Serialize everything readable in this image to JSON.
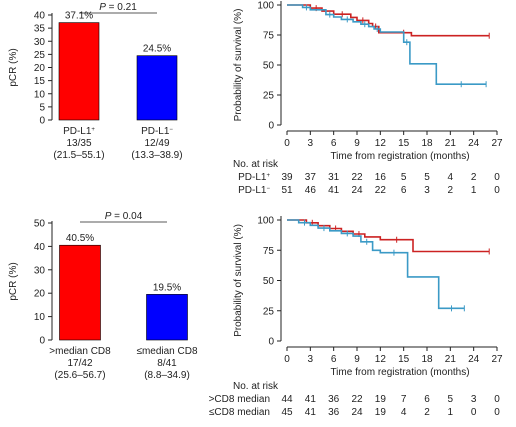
{
  "chart_data": [
    {
      "type": "bar",
      "panel": "top-left",
      "ylabel": "pCR (%)",
      "ylim": [
        0,
        40
      ],
      "yticks": [
        0,
        5,
        10,
        15,
        20,
        25,
        30,
        35,
        40
      ],
      "p_value": "P = 0.21",
      "categories": [
        "PD-L1+",
        "PD-L1−"
      ],
      "category_labels": [
        {
          "name": "PD-L1",
          "sup": "+",
          "count": "13/35",
          "ci": "(21.5–55.1)"
        },
        {
          "name": "PD-L1",
          "sup": "−",
          "count": "12/49",
          "ci": "(13.3–38.9)"
        }
      ],
      "values": [
        37.1,
        24.5
      ],
      "value_labels": [
        "37.1%",
        "24.5%"
      ],
      "colors": [
        "#ff0000",
        "#0000ff"
      ]
    },
    {
      "type": "line",
      "subtype": "kaplan-meier",
      "panel": "top-right",
      "ylabel": "Probability of survival (%)",
      "xlabel": "Time from registration (months)",
      "xlim": [
        0,
        27
      ],
      "ylim": [
        0,
        100
      ],
      "xticks": [
        0,
        3,
        6,
        9,
        12,
        15,
        18,
        21,
        24,
        27
      ],
      "yticks": [
        0,
        25,
        50,
        75,
        100
      ],
      "series": [
        {
          "name": "PD-L1+",
          "color": "#cc2222",
          "x": [
            0,
            3,
            4.5,
            6,
            8.2,
            9,
            10.5,
            11,
            11.8,
            14,
            16,
            26
          ],
          "y": [
            100,
            97.4,
            94.9,
            92.3,
            89.7,
            87.2,
            84.6,
            82.1,
            76.9,
            76.9,
            74.4,
            74.4
          ]
        },
        {
          "name": "PD-L1−",
          "color": "#3b9ac6",
          "x": [
            0,
            2,
            3,
            5,
            6,
            7,
            8.5,
            9.5,
            10.5,
            11.2,
            12,
            15,
            15.8,
            19.2,
            25.6
          ],
          "y": [
            100,
            98,
            96,
            92,
            90,
            88,
            86,
            84,
            82,
            80,
            77.5,
            69,
            51,
            34,
            34
          ]
        }
      ],
      "risk_table": {
        "title": "No. at risk",
        "rows": [
          {
            "label": "PD-L1",
            "sup": "+",
            "values": [
              "39",
              "37",
              "31",
              "22",
              "16",
              "5",
              "5",
              "4",
              "2",
              "0"
            ]
          },
          {
            "label": "PD-L1",
            "sup": "−",
            "values": [
              "51",
              "46",
              "41",
              "24",
              "22",
              "6",
              "3",
              "2",
              "1",
              "0"
            ]
          }
        ]
      }
    },
    {
      "type": "bar",
      "panel": "bottom-left",
      "ylabel": "pCR (%)",
      "ylim": [
        0,
        50
      ],
      "yticks": [
        0,
        10,
        20,
        30,
        40,
        50
      ],
      "p_value": "P = 0.04",
      "categories": [
        ">median CD8",
        "≤median CD8"
      ],
      "category_labels": [
        {
          "name": ">median CD8",
          "sup": "",
          "count": "17/42",
          "ci": "(25.6–56.7)"
        },
        {
          "name": "≤median CD8",
          "sup": "",
          "count": "8/41",
          "ci": "(8.8–34.9)"
        }
      ],
      "values": [
        40.5,
        19.5
      ],
      "value_labels": [
        "40.5%",
        "19.5%"
      ],
      "colors": [
        "#ff0000",
        "#0000ff"
      ]
    },
    {
      "type": "line",
      "subtype": "kaplan-meier",
      "panel": "bottom-right",
      "ylabel": "Probability of survival (%)",
      "xlabel": "Time from registration (months)",
      "xlim": [
        0,
        27
      ],
      "ylim": [
        0,
        100
      ],
      "xticks": [
        0,
        3,
        6,
        9,
        12,
        15,
        18,
        21,
        24,
        27
      ],
      "yticks": [
        0,
        25,
        50,
        75,
        100
      ],
      "series": [
        {
          "name": ">CD8 median",
          "color": "#cc2222",
          "x": [
            0,
            2.5,
            4,
            5.5,
            7,
            8.5,
            10,
            12,
            16.2,
            26
          ],
          "y": [
            100,
            97.7,
            95.3,
            93,
            90.7,
            88.4,
            86,
            83.7,
            74,
            74
          ]
        },
        {
          "name": "≤CD8 median",
          "color": "#3b9ac6",
          "x": [
            0,
            1.5,
            3,
            4,
            5.5,
            7,
            8.5,
            9.5,
            11,
            12,
            15.5,
            19.5,
            22.8
          ],
          "y": [
            100,
            97.8,
            95.6,
            93.3,
            91.1,
            88.9,
            86.7,
            82,
            75,
            73,
            53,
            27,
            27
          ]
        }
      ],
      "risk_table": {
        "title": "No. at risk",
        "rows": [
          {
            "label": ">CD8 median",
            "sup": "",
            "values": [
              "44",
              "41",
              "36",
              "22",
              "19",
              "7",
              "6",
              "5",
              "3",
              "0"
            ]
          },
          {
            "label": "≤CD8 median",
            "sup": "",
            "values": [
              "45",
              "41",
              "36",
              "24",
              "19",
              "4",
              "2",
              "1",
              "0",
              "0"
            ]
          }
        ]
      }
    }
  ]
}
